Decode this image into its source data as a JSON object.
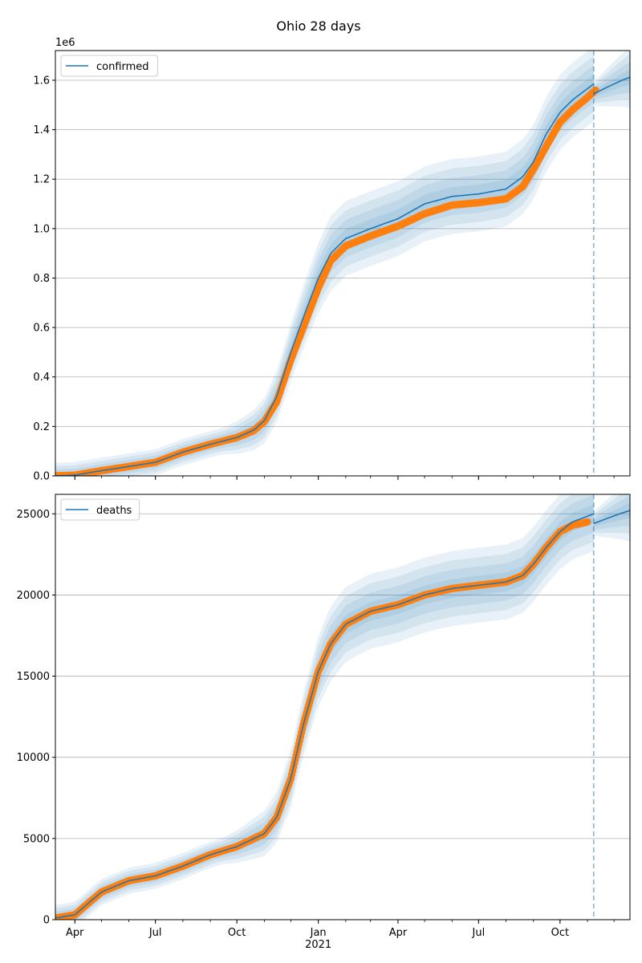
{
  "title": "Ohio 28 days",
  "colors": {
    "model": "#1f77b4",
    "observed": "#ff7f0e",
    "band": "#1f77b4",
    "grid": "#b0b0b0"
  },
  "chart_data": [
    {
      "type": "line",
      "legend": "confirmed",
      "legend_position": "top-left",
      "grid": true,
      "y_offset_label": "1e6",
      "ylim": [
        0,
        1.72
      ],
      "yticks": [
        0.0,
        0.2,
        0.4,
        0.6,
        0.8,
        1.0,
        1.2,
        1.4,
        1.6
      ],
      "ytick_labels": [
        "0.0",
        "0.2",
        "0.4",
        "0.6",
        "0.8",
        "1.0",
        "1.2",
        "1.4",
        "1.6"
      ],
      "xlim": [
        "2020-03-10",
        "2021-12-19"
      ],
      "xticks": [
        "2020-04-01",
        "2020-07-01",
        "2020-10-01",
        "2021-01-01",
        "2021-04-01",
        "2021-07-01",
        "2021-10-01"
      ],
      "xtick_labels": [],
      "forecast_start": "2021-11-08",
      "model": {
        "name": "confirmed",
        "x": [
          "2020-03-10",
          "2020-04-01",
          "2020-05-01",
          "2020-06-01",
          "2020-07-01",
          "2020-08-01",
          "2020-09-01",
          "2020-10-01",
          "2020-10-20",
          "2020-11-01",
          "2020-11-15",
          "2020-12-01",
          "2020-12-15",
          "2021-01-01",
          "2021-01-15",
          "2021-02-01",
          "2021-03-01",
          "2021-04-01",
          "2021-05-01",
          "2021-06-01",
          "2021-07-01",
          "2021-08-01",
          "2021-08-20",
          "2021-09-01",
          "2021-09-15",
          "2021-10-01",
          "2021-10-15",
          "2021-11-08"
        ],
        "y": [
          0.0,
          0.003,
          0.021,
          0.038,
          0.055,
          0.096,
          0.128,
          0.155,
          0.185,
          0.223,
          0.32,
          0.5,
          0.64,
          0.8,
          0.9,
          0.96,
          1.0,
          1.04,
          1.1,
          1.13,
          1.14,
          1.16,
          1.21,
          1.27,
          1.38,
          1.47,
          1.52,
          1.585
        ],
        "forecast_x": [
          "2021-11-08",
          "2021-11-25",
          "2021-12-10",
          "2021-12-19"
        ],
        "forecast_y": [
          1.545,
          1.575,
          1.6,
          1.612
        ]
      },
      "observed": {
        "x": [
          "2020-03-10",
          "2020-04-01",
          "2020-05-01",
          "2020-06-01",
          "2020-07-01",
          "2020-08-01",
          "2020-09-01",
          "2020-10-01",
          "2020-10-20",
          "2020-11-01",
          "2020-11-15",
          "2020-12-01",
          "2020-12-15",
          "2021-01-01",
          "2021-01-15",
          "2021-02-01",
          "2021-03-01",
          "2021-04-01",
          "2021-05-01",
          "2021-06-01",
          "2021-07-01",
          "2021-08-01",
          "2021-08-20",
          "2021-09-01",
          "2021-09-15",
          "2021-10-01",
          "2021-10-15",
          "2021-11-01",
          "2021-11-10"
        ],
        "y": [
          0.0,
          0.003,
          0.021,
          0.038,
          0.055,
          0.096,
          0.128,
          0.155,
          0.183,
          0.22,
          0.3,
          0.47,
          0.6,
          0.76,
          0.87,
          0.93,
          0.97,
          1.01,
          1.06,
          1.095,
          1.105,
          1.12,
          1.17,
          1.24,
          1.33,
          1.43,
          1.48,
          1.53,
          1.56
        ]
      }
    },
    {
      "type": "line",
      "legend": "deaths",
      "legend_position": "top-left",
      "grid": true,
      "ylim": [
        0,
        26200
      ],
      "yticks": [
        0,
        5000,
        10000,
        15000,
        20000,
        25000
      ],
      "ytick_labels": [
        "0",
        "5000",
        "10000",
        "15000",
        "20000",
        "25000"
      ],
      "xlim": [
        "2020-03-10",
        "2021-12-19"
      ],
      "xticks": [
        "2020-04-01",
        "2020-07-01",
        "2020-10-01",
        "2021-01-01",
        "2021-04-01",
        "2021-07-01",
        "2021-10-01"
      ],
      "xtick_labels": [
        "Apr",
        "Jul",
        "Oct",
        "Jan\n2021",
        "Apr",
        "Jul",
        "Oct"
      ],
      "forecast_start": "2021-11-08",
      "model": {
        "name": "deaths",
        "x": [
          "2020-03-10",
          "2020-04-01",
          "2020-05-01",
          "2020-06-01",
          "2020-07-01",
          "2020-08-01",
          "2020-09-01",
          "2020-10-01",
          "2020-11-01",
          "2020-11-15",
          "2020-12-01",
          "2020-12-15",
          "2021-01-01",
          "2021-01-15",
          "2021-02-01",
          "2021-03-01",
          "2021-04-01",
          "2021-05-01",
          "2021-06-01",
          "2021-07-01",
          "2021-08-01",
          "2021-08-20",
          "2021-09-01",
          "2021-09-15",
          "2021-10-01",
          "2021-10-15",
          "2021-11-08"
        ],
        "y": [
          100,
          300,
          1700,
          2400,
          2700,
          3300,
          4000,
          4500,
          5300,
          6300,
          8700,
          12000,
          15300,
          17000,
          18200,
          19000,
          19400,
          20000,
          20400,
          20600,
          20800,
          21200,
          21900,
          22900,
          23900,
          24500,
          25000
        ],
        "forecast_x": [
          "2021-11-08",
          "2021-11-25",
          "2021-12-10",
          "2021-12-19"
        ],
        "forecast_y": [
          24400,
          24750,
          25050,
          25200
        ]
      },
      "observed": {
        "x": [
          "2020-03-10",
          "2020-04-01",
          "2020-05-01",
          "2020-06-01",
          "2020-07-01",
          "2020-08-01",
          "2020-09-01",
          "2020-10-01",
          "2020-11-01",
          "2020-11-15",
          "2020-12-01",
          "2020-12-15",
          "2021-01-01",
          "2021-01-15",
          "2021-02-01",
          "2021-03-01",
          "2021-04-01",
          "2021-05-01",
          "2021-06-01",
          "2021-07-01",
          "2021-08-01",
          "2021-08-20",
          "2021-09-01",
          "2021-09-15",
          "2021-10-01",
          "2021-10-15",
          "2021-11-01"
        ],
        "y": [
          100,
          300,
          1700,
          2400,
          2700,
          3300,
          4000,
          4500,
          5300,
          6300,
          8700,
          12000,
          15300,
          17000,
          18200,
          19000,
          19400,
          20000,
          20400,
          20600,
          20800,
          21200,
          21900,
          22900,
          23900,
          24300,
          24500
        ]
      }
    }
  ]
}
